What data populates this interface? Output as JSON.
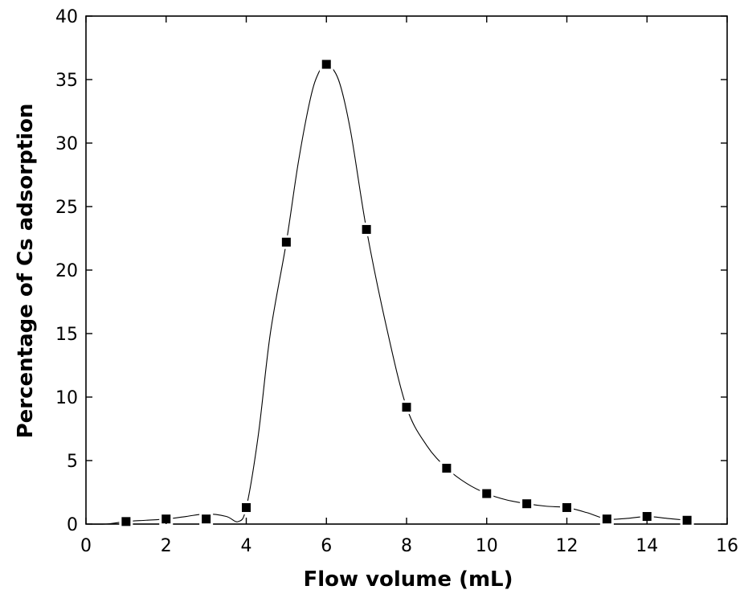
{
  "chart_data": {
    "type": "scatter",
    "title": "",
    "xlabel": "Flow volume (mL)",
    "ylabel": "Percentage of Cs adsorption",
    "xlim": [
      0,
      16
    ],
    "ylim": [
      0,
      40
    ],
    "xticks": [
      0,
      2,
      4,
      6,
      8,
      10,
      12,
      14,
      16
    ],
    "yticks": [
      0,
      5,
      10,
      15,
      20,
      25,
      30,
      35,
      40
    ],
    "grid": false,
    "legend": "none",
    "marker": "square",
    "fit_line": "smooth-spline",
    "colors": {
      "marker": "#000000",
      "line": "#000000",
      "axes": "#000000"
    },
    "series": [
      {
        "x": [
          1,
          2,
          3,
          4,
          5,
          6,
          7,
          8,
          9,
          10,
          11,
          12,
          13,
          14,
          15
        ],
        "y": [
          0.2,
          0.4,
          0.4,
          1.3,
          22.2,
          36.2,
          23.2,
          9.2,
          4.4,
          2.4,
          1.6,
          1.3,
          0.4,
          0.6,
          0.3
        ]
      }
    ],
    "fit_curve": {
      "x": [
        0,
        0.5,
        1,
        1.5,
        2,
        2.5,
        3,
        3.5,
        3.8,
        4,
        4.3,
        4.6,
        5,
        5.3,
        5.6,
        5.8,
        6,
        6.3,
        6.6,
        7,
        7.5,
        8,
        8.5,
        9,
        9.5,
        10,
        10.5,
        11,
        11.5,
        12,
        12.5,
        13,
        13.5,
        14,
        14.5,
        15
      ],
      "y": [
        0,
        0,
        0.2,
        0.3,
        0.4,
        0.6,
        0.8,
        0.6,
        0.2,
        1.3,
        7,
        15,
        22.2,
        28.5,
        33.5,
        35.5,
        36.2,
        35,
        31,
        23.2,
        15.5,
        9.2,
        6.2,
        4.4,
        3.2,
        2.4,
        1.9,
        1.6,
        1.4,
        1.3,
        0.9,
        0.4,
        0.45,
        0.6,
        0.45,
        0.3
      ]
    }
  }
}
